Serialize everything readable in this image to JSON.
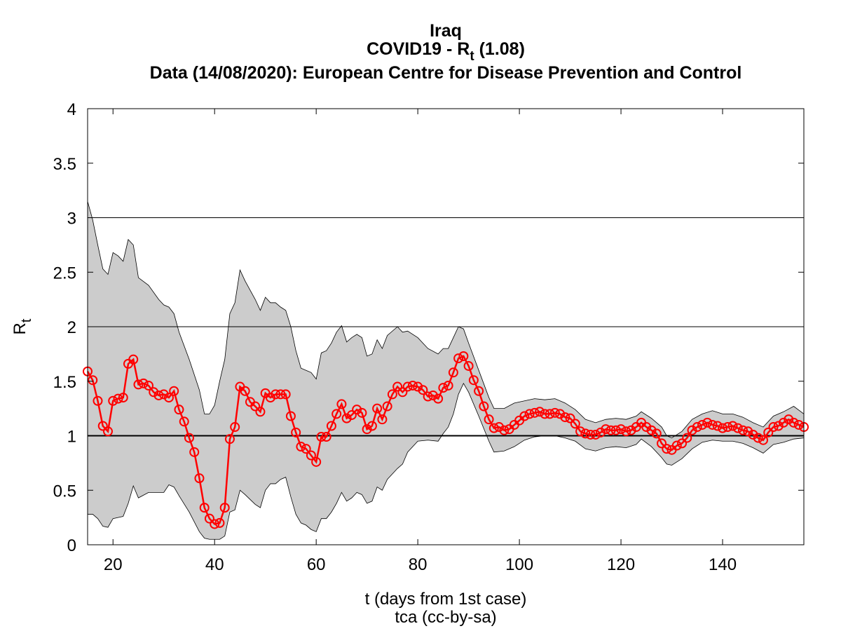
{
  "chart_data": {
    "type": "line",
    "title": "Iraq",
    "subtitle_parts": [
      "COVID19 - R",
      "t",
      " (1.08)"
    ],
    "source_line": "Data (14/08/2020): European Centre for Disease Prevention and Control",
    "xlabel": "t (days from 1st case)",
    "credit": "tca (cc-by-sa)",
    "ylabel_parts": [
      "R",
      "t"
    ],
    "xlim": [
      15,
      156
    ],
    "ylim": [
      0,
      4
    ],
    "xticks": [
      20,
      40,
      60,
      80,
      100,
      120,
      140
    ],
    "yticks": [
      0,
      0.5,
      1,
      1.5,
      2,
      2.5,
      3,
      3.5,
      4
    ],
    "reference_lines": [
      1,
      2,
      3
    ],
    "x": [
      15,
      16,
      17,
      18,
      19,
      20,
      21,
      22,
      23,
      24,
      25,
      26,
      27,
      28,
      29,
      30,
      31,
      32,
      33,
      34,
      35,
      36,
      37,
      38,
      39,
      40,
      41,
      42,
      43,
      44,
      45,
      46,
      47,
      48,
      49,
      50,
      51,
      52,
      53,
      54,
      55,
      56,
      57,
      58,
      59,
      60,
      61,
      62,
      63,
      64,
      65,
      66,
      67,
      68,
      69,
      70,
      71,
      72,
      73,
      74,
      75,
      76,
      77,
      78,
      79,
      80,
      81,
      82,
      83,
      84,
      85,
      86,
      87,
      88,
      89,
      90,
      91,
      92,
      93,
      94,
      95,
      96,
      97,
      98,
      99,
      100,
      101,
      102,
      103,
      104,
      105,
      106,
      107,
      108,
      109,
      110,
      111,
      112,
      113,
      114,
      115,
      116,
      117,
      118,
      119,
      120,
      121,
      122,
      123,
      124,
      125,
      126,
      127,
      128,
      129,
      130,
      131,
      132,
      133,
      134,
      135,
      136,
      137,
      138,
      139,
      140,
      141,
      142,
      143,
      144,
      145,
      146,
      147,
      148,
      149,
      150,
      151,
      152,
      153,
      154,
      155,
      156
    ],
    "series": [
      {
        "color": "#ff0000",
        "values": [
          1.59,
          1.51,
          1.32,
          1.09,
          1.04,
          1.32,
          1.34,
          1.35,
          1.66,
          1.7,
          1.47,
          1.48,
          1.46,
          1.4,
          1.37,
          1.38,
          1.35,
          1.41,
          1.24,
          1.13,
          0.98,
          0.85,
          0.61,
          0.34,
          0.24,
          0.19,
          0.2,
          0.34,
          0.97,
          1.08,
          1.45,
          1.41,
          1.31,
          1.27,
          1.22,
          1.39,
          1.35,
          1.38,
          1.38,
          1.38,
          1.18,
          1.03,
          0.9,
          0.88,
          0.82,
          0.76,
          0.99,
          0.99,
          1.09,
          1.2,
          1.29,
          1.16,
          1.19,
          1.24,
          1.21,
          1.06,
          1.09,
          1.25,
          1.15,
          1.27,
          1.38,
          1.45,
          1.4,
          1.45,
          1.46,
          1.45,
          1.42,
          1.36,
          1.37,
          1.34,
          1.44,
          1.46,
          1.58,
          1.71,
          1.73,
          1.64,
          1.51,
          1.41,
          1.27,
          1.15,
          1.07,
          1.08,
          1.05,
          1.06,
          1.1,
          1.14,
          1.18,
          1.2,
          1.21,
          1.22,
          1.2,
          1.2,
          1.21,
          1.2,
          1.17,
          1.16,
          1.11,
          1.04,
          1.02,
          1.01,
          1.01,
          1.03,
          1.06,
          1.05,
          1.05,
          1.06,
          1.04,
          1.05,
          1.08,
          1.12,
          1.08,
          1.05,
          1.02,
          0.93,
          0.88,
          0.87,
          0.91,
          0.93,
          0.98,
          1.05,
          1.08,
          1.1,
          1.12,
          1.1,
          1.09,
          1.07,
          1.08,
          1.09,
          1.07,
          1.05,
          1.04,
          1.01,
          0.98,
          0.96,
          1.03,
          1.08,
          1.09,
          1.12,
          1.15,
          1.12,
          1.1,
          1.08
        ]
      }
    ],
    "band": {
      "color": "#cccccc",
      "x": [
        15,
        16,
        17,
        18,
        19,
        20,
        21,
        22,
        23,
        24,
        25,
        27,
        29,
        30,
        31,
        32,
        33,
        35,
        37,
        38,
        39,
        40,
        41,
        42,
        43,
        44,
        45,
        46,
        48,
        49,
        50,
        51,
        52,
        53,
        54,
        55,
        56,
        57,
        58,
        59,
        60,
        61,
        62,
        63,
        64,
        65,
        66,
        67,
        68,
        69,
        70,
        71,
        72,
        73,
        74,
        76,
        77,
        78,
        80,
        82,
        84,
        85,
        86,
        87,
        88,
        89,
        90,
        92,
        94,
        95,
        97,
        99,
        101,
        103,
        105,
        107,
        109,
        111,
        113,
        115,
        117,
        119,
        121,
        123,
        124,
        126,
        128,
        129,
        130,
        132,
        134,
        136,
        138,
        140,
        142,
        144,
        146,
        148,
        150,
        152,
        154,
        156
      ],
      "upper": [
        3.15,
        2.98,
        2.75,
        2.53,
        2.48,
        2.68,
        2.65,
        2.6,
        2.8,
        2.75,
        2.45,
        2.38,
        2.25,
        2.2,
        2.18,
        2.12,
        1.95,
        1.7,
        1.42,
        1.2,
        1.2,
        1.28,
        1.5,
        1.7,
        2.12,
        2.22,
        2.52,
        2.42,
        2.25,
        2.15,
        2.27,
        2.22,
        2.22,
        2.18,
        2.15,
        2.0,
        1.78,
        1.62,
        1.6,
        1.58,
        1.52,
        1.76,
        1.78,
        1.85,
        1.95,
        2.01,
        1.86,
        1.9,
        1.93,
        1.9,
        1.73,
        1.75,
        1.88,
        1.8,
        1.92,
        2.0,
        1.95,
        1.96,
        1.9,
        1.8,
        1.75,
        1.8,
        1.8,
        1.9,
        2.0,
        1.98,
        1.85,
        1.6,
        1.35,
        1.25,
        1.25,
        1.3,
        1.32,
        1.34,
        1.33,
        1.34,
        1.3,
        1.24,
        1.15,
        1.12,
        1.15,
        1.16,
        1.15,
        1.18,
        1.22,
        1.16,
        1.08,
        1.0,
        0.98,
        1.04,
        1.15,
        1.2,
        1.23,
        1.2,
        1.2,
        1.17,
        1.12,
        1.08,
        1.18,
        1.22,
        1.27,
        1.2
      ],
      "lower": [
        0.28,
        0.28,
        0.24,
        0.17,
        0.16,
        0.24,
        0.25,
        0.26,
        0.38,
        0.54,
        0.43,
        0.48,
        0.48,
        0.48,
        0.55,
        0.53,
        0.45,
        0.3,
        0.12,
        0.06,
        0.05,
        0.05,
        0.05,
        0.08,
        0.3,
        0.32,
        0.5,
        0.46,
        0.37,
        0.34,
        0.5,
        0.56,
        0.56,
        0.6,
        0.62,
        0.44,
        0.28,
        0.2,
        0.18,
        0.14,
        0.12,
        0.24,
        0.24,
        0.3,
        0.38,
        0.48,
        0.4,
        0.43,
        0.48,
        0.46,
        0.38,
        0.4,
        0.53,
        0.5,
        0.6,
        0.7,
        0.74,
        0.85,
        0.95,
        0.96,
        0.95,
        1.02,
        1.08,
        1.2,
        1.38,
        1.48,
        1.4,
        1.18,
        0.95,
        0.85,
        0.86,
        0.9,
        0.96,
        0.99,
        1.0,
        1.0,
        0.98,
        0.95,
        0.88,
        0.86,
        0.89,
        0.9,
        0.89,
        0.92,
        0.97,
        0.9,
        0.8,
        0.74,
        0.73,
        0.79,
        0.88,
        0.94,
        0.96,
        0.95,
        0.95,
        0.93,
        0.89,
        0.84,
        0.92,
        0.94,
        0.97,
        0.98
      ]
    }
  }
}
